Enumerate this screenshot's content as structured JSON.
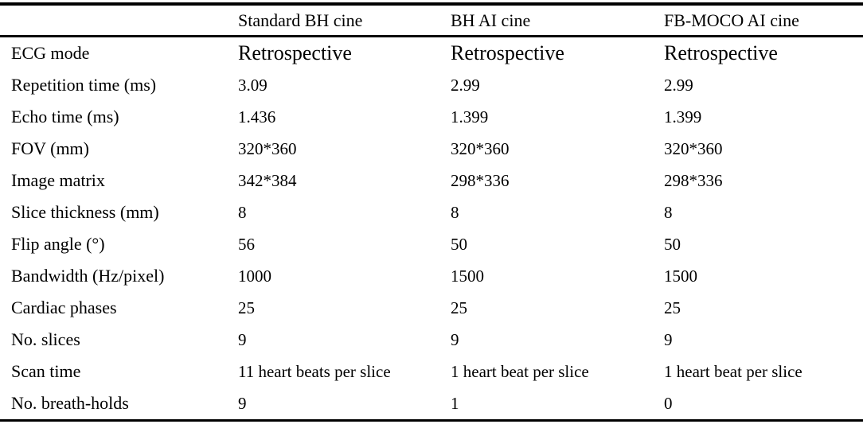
{
  "table": {
    "columns": [
      "",
      "Standard BH cine",
      "BH AI cine",
      "FB-MOCO AI cine"
    ],
    "rows": [
      {
        "label": "ECG mode",
        "values": [
          "Retrospective",
          "Retrospective",
          "Retrospective"
        ]
      },
      {
        "label": "Repetition time (ms)",
        "values": [
          "3.09",
          "2.99",
          "2.99"
        ]
      },
      {
        "label": "Echo time (ms)",
        "values": [
          "1.436",
          "1.399",
          "1.399"
        ]
      },
      {
        "label": "FOV (mm)",
        "values": [
          "320*360",
          "320*360",
          "320*360"
        ]
      },
      {
        "label": "Image matrix",
        "values": [
          "342*384",
          "298*336",
          "298*336"
        ]
      },
      {
        "label": "Slice thickness (mm)",
        "values": [
          "8",
          "8",
          "8"
        ]
      },
      {
        "label": "Flip angle (°)",
        "values": [
          "56",
          "50",
          "50"
        ]
      },
      {
        "label": "Bandwidth (Hz/pixel)",
        "values": [
          "1000",
          "1500",
          "1500"
        ]
      },
      {
        "label": "Cardiac phases",
        "values": [
          "25",
          "25",
          "25"
        ]
      },
      {
        "label": "No. slices",
        "values": [
          "9",
          "9",
          "9"
        ]
      },
      {
        "label": "Scan time",
        "values": [
          "11 heart beats per slice",
          "1 heart beat per slice",
          "1 heart beat per slice"
        ]
      },
      {
        "label": "No. breath-holds",
        "values": [
          "9",
          "1",
          "0"
        ]
      }
    ]
  }
}
